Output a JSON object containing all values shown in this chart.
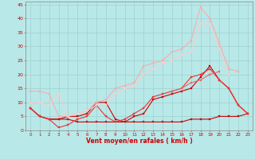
{
  "background_color": "#b8e8e8",
  "grid_color": "#99cccc",
  "xlabel": "Vent moyen/en rafales ( km/h )",
  "xlabel_color": "#cc0000",
  "ylabel_color": "#cc0000",
  "xlim": [
    -0.5,
    23.5
  ],
  "ylim": [
    0,
    46
  ],
  "yticks": [
    0,
    5,
    10,
    15,
    20,
    25,
    30,
    35,
    40,
    45
  ],
  "xticks": [
    0,
    1,
    2,
    3,
    4,
    5,
    6,
    7,
    8,
    9,
    10,
    11,
    12,
    13,
    14,
    15,
    16,
    17,
    18,
    19,
    20,
    21,
    22,
    23
  ],
  "series": [
    {
      "x": [
        0,
        1,
        2,
        3,
        4,
        5,
        6,
        7,
        8,
        9,
        10,
        11,
        12,
        13,
        14,
        15,
        16,
        17,
        18,
        19,
        20,
        21,
        22,
        23
      ],
      "y": [
        8,
        5,
        4,
        4,
        4,
        3,
        3,
        3,
        3,
        3,
        3,
        3,
        3,
        3,
        3,
        3,
        3,
        4,
        4,
        4,
        5,
        5,
        5,
        6
      ],
      "color": "#cc0000",
      "lw": 0.8,
      "marker": "s",
      "ms": 1.5
    },
    {
      "x": [
        0,
        1,
        2,
        3,
        4,
        5,
        6,
        7,
        8,
        9,
        10,
        11,
        12,
        13,
        14,
        15,
        16,
        17,
        18,
        19,
        20,
        21,
        22,
        23
      ],
      "y": [
        8,
        5,
        4,
        4,
        5,
        5,
        6,
        10,
        10,
        4,
        3,
        5,
        6,
        11,
        12,
        13,
        14,
        15,
        19,
        23,
        18,
        15,
        9,
        6
      ],
      "color": "#cc0000",
      "lw": 0.8,
      "marker": "s",
      "ms": 1.5
    },
    {
      "x": [
        0,
        1,
        2,
        3,
        4,
        5,
        6,
        7,
        8,
        9,
        10,
        11,
        12,
        13,
        14,
        15,
        16,
        17,
        18,
        19,
        20,
        21,
        22,
        23
      ],
      "y": [
        8,
        5,
        4,
        1,
        2,
        4,
        5,
        9,
        5,
        3,
        4,
        6,
        8,
        12,
        13,
        14,
        15,
        19,
        20,
        22,
        18,
        15,
        9,
        6
      ],
      "color": "#ee3333",
      "lw": 0.8,
      "marker": "s",
      "ms": 1.5
    },
    {
      "x": [
        0,
        1,
        2,
        3,
        4,
        5,
        6,
        7,
        8,
        9,
        10,
        11,
        12,
        13,
        14,
        15,
        16,
        17,
        18,
        19,
        20,
        21,
        22,
        23
      ],
      "y": [
        14,
        14,
        13,
        5,
        5,
        6,
        7,
        10,
        11,
        15,
        16,
        17,
        23,
        24,
        25,
        28,
        29,
        32,
        44,
        40,
        31,
        22,
        21,
        null
      ],
      "color": "#ffaaaa",
      "lw": 0.8,
      "marker": "s",
      "ms": 1.5
    },
    {
      "x": [
        0,
        1,
        2,
        3,
        4,
        5,
        6,
        7,
        8,
        9,
        10,
        11,
        12,
        13,
        14,
        15,
        16,
        17,
        18,
        19,
        20,
        21,
        22,
        23
      ],
      "y": [
        10,
        10,
        9,
        13,
        5,
        6,
        7,
        9,
        9,
        13,
        15,
        16,
        20,
        22,
        24,
        25,
        27,
        28,
        38,
        38,
        29,
        20,
        null,
        null
      ],
      "color": "#ffcccc",
      "lw": 0.8,
      "marker": "s",
      "ms": 1.5
    },
    {
      "x": [
        0,
        1,
        2,
        3,
        4,
        5,
        6,
        7,
        8,
        9,
        10,
        11,
        12,
        13,
        14,
        15,
        16,
        17,
        18,
        19,
        20,
        21,
        22,
        23
      ],
      "y": [
        null,
        null,
        null,
        null,
        null,
        null,
        null,
        null,
        null,
        null,
        null,
        null,
        null,
        null,
        null,
        14,
        15,
        17,
        18,
        20,
        21,
        null,
        null,
        null
      ],
      "color": "#ee6666",
      "lw": 0.8,
      "marker": "s",
      "ms": 1.5
    }
  ]
}
